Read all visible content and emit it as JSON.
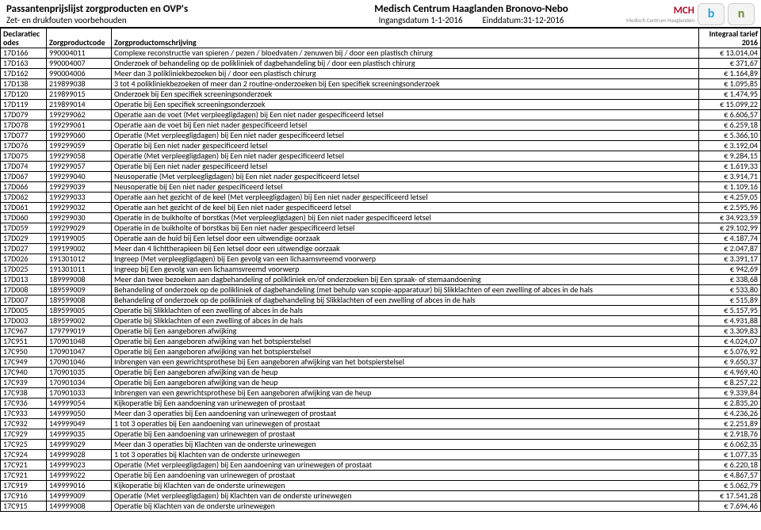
{
  "header": {
    "title_left_1": "Passantenprijslijst zorgproducten en OVP's",
    "title_left_2": "Zet- en drukfouten voorbehouden",
    "title_center_1": "Medisch Centrum Haaglanden Bronovo-Nebo",
    "title_center_2a": "Ingangsdatum 1-1-2016",
    "title_center_2b": "Einddatum:31-12-2016",
    "logo_mch": "MCH",
    "logo_mch_sub": "Medisch Centrum Haaglanden",
    "logo_b": "b",
    "logo_n": "n"
  },
  "columns": {
    "odes": "Declaratiec odes",
    "code": "Zorgproductcode",
    "desc": "Zorgproductomschrijving",
    "tarief": "Integraal tarief 2016"
  },
  "rows": [
    {
      "o": "17D166",
      "c": "990004011",
      "d": "Complexe reconstructie van spieren / pezen / bloedvaten / zenuwen bij / door een plastisch chirurg",
      "t": "€ 13.014,04"
    },
    {
      "o": "17D163",
      "c": "990004007",
      "d": "Onderzoek of behandeling op de polikliniek of dagbehandeling bij / door een plastisch chirurg",
      "t": "€ 371,67"
    },
    {
      "o": "17D162",
      "c": "990004006",
      "d": "Meer dan 3 polikliniekbezoeken bij / door een plastisch chirurg",
      "t": "€ 1.164,89"
    },
    {
      "o": "17D138",
      "c": "219899038",
      "d": "3 tot 4 polikliniekbezoeken of meer dan 2 routine-onderzoeken bij Een specifiek screeningsonderzoek",
      "t": "€ 1.095,85"
    },
    {
      "o": "17D120",
      "c": "219899015",
      "d": "Onderzoek bij Een specifiek screeningsonderzoek",
      "t": "€ 1.474,95"
    },
    {
      "o": "17D119",
      "c": "219899014",
      "d": "Operatie bij Een specifiek screeningsonderzoek",
      "t": "€ 15.099,22"
    },
    {
      "o": "17D079",
      "c": "199299062",
      "d": "Operatie aan de voet (Met verpleegligdagen) bij Een niet nader gespecificeerd letsel",
      "t": "€ 6.606,57"
    },
    {
      "o": "17D078",
      "c": "199299061",
      "d": "Operatie aan de voet bij Een niet nader gespecificeerd letsel",
      "t": "€ 6.259,18"
    },
    {
      "o": "17D077",
      "c": "199299060",
      "d": "Operatie (Met verpleegligdagen) bij Een niet nader gespecificeerd letsel",
      "t": "€ 5.366,10"
    },
    {
      "o": "17D076",
      "c": "199299059",
      "d": "Operatie bij Een niet nader gespecificeerd letsel",
      "t": "€ 3.192,04"
    },
    {
      "o": "17D075",
      "c": "199299058",
      "d": "Operatie (Met verpleegligdagen) bij Een niet nader gespecificeerd letsel",
      "t": "€ 9.284,15"
    },
    {
      "o": "17D074",
      "c": "199299057",
      "d": "Operatie bij Een niet nader gespecificeerd letsel",
      "t": "€ 1.619,33"
    },
    {
      "o": "17D067",
      "c": "199299040",
      "d": "Neusoperatie (Met verpleegligdagen) bij Een niet nader gespecificeerd letsel",
      "t": "€ 3.914,71"
    },
    {
      "o": "17D066",
      "c": "199299039",
      "d": "Neusoperatie bij Een niet nader gespecificeerd letsel",
      "t": "€ 1.109,16"
    },
    {
      "o": "17D062",
      "c": "199299033",
      "d": "Operatie aan het gezicht of de keel (Met verpleegligdagen) bij Een niet nader gespecificeerd letsel",
      "t": "€ 4.259,05"
    },
    {
      "o": "17D061",
      "c": "199299032",
      "d": "Operatie aan het gezicht of de keel bij Een niet nader gespecificeerd letsel",
      "t": "€ 2.595,96"
    },
    {
      "o": "17D060",
      "c": "199299030",
      "d": "Operatie in de buikholte of borstkas (Met verpleegligdagen) bij Een niet nader gespecificeerd letsel",
      "t": "€ 34.923,59"
    },
    {
      "o": "17D059",
      "c": "199299029",
      "d": "Operatie in de buikholte of borstkas bij Een niet nader gespecificeerd letsel",
      "t": "€ 29.102,99"
    },
    {
      "o": "17D029",
      "c": "199199005",
      "d": "Operatie aan de huid bij Een letsel door een uitwendige oorzaak",
      "t": "€ 4.187,74"
    },
    {
      "o": "17D027",
      "c": "199199002",
      "d": "Meer dan 4 lichttherapieen bij Een letsel door een uitwendige oorzaak",
      "t": "€ 2.047,87"
    },
    {
      "o": "17D026",
      "c": "191301012",
      "d": "Ingreep (Met verpleegligdagen) bij Een gevolg van een lichaamsvreemd voorwerp",
      "t": "€ 3.391,17"
    },
    {
      "o": "17D025",
      "c": "191301011",
      "d": "Ingreep bij Een gevolg van een lichaamsvreemd voorwerp",
      "t": "€ 942,69"
    },
    {
      "o": "17D013",
      "c": "189999008",
      "d": "Meer dan twee bezoeken aan dagbehandeling of polikliniek en/of onderzoeken bij Een spraak- of stemaandoening",
      "t": "€ 338,68"
    },
    {
      "o": "17D008",
      "c": "189599009",
      "d": "Behandeling of onderzoek op de polikliniek of dagbehandeling (met behulp van scopie-apparatuur) bij Slikklachten of een zwelling of abces in de hals",
      "t": "€ 533,80"
    },
    {
      "o": "17D007",
      "c": "189599008",
      "d": "Behandeling of onderzoek op de polikliniek of dagbehandeling bij Slikklachten of een zwelling of abces in de hals",
      "t": "€ 515,89"
    },
    {
      "o": "17D005",
      "c": "189599005",
      "d": "Operatie bij Slikklachten of een zwelling of abces in de hals",
      "t": "€ 5.157,95"
    },
    {
      "o": "17D003",
      "c": "189599002",
      "d": "Operatie bij Slikklachten of een zwelling of abces in de hals",
      "t": "€ 4.931,88"
    },
    {
      "o": "17C967",
      "c": "179799019",
      "d": "Operatie bij Een aangeboren afwijking",
      "t": "€ 3.309,83"
    },
    {
      "o": "17C951",
      "c": "170901048",
      "d": "Operatie bij Een aangeboren afwijking van het botspierstelsel",
      "t": "€ 4.024,07"
    },
    {
      "o": "17C950",
      "c": "170901047",
      "d": "Operatie bij Een aangeboren afwijking van het botspierstelsel",
      "t": "€ 5.076,92"
    },
    {
      "o": "17C949",
      "c": "170901046",
      "d": "Inbrengen van een gewrichtsprothese bij Een aangeboren afwijking van het botspierstelsel",
      "t": "€ 9.650,37"
    },
    {
      "o": "17C940",
      "c": "170901035",
      "d": "Operatie bij Een aangeboren afwijking van de heup",
      "t": "€ 4.969,40"
    },
    {
      "o": "17C939",
      "c": "170901034",
      "d": "Operatie bij Een aangeboren afwijking van de heup",
      "t": "€ 8.257,22"
    },
    {
      "o": "17C938",
      "c": "170901033",
      "d": "Inbrengen van een gewrichtsprothese bij Een aangeboren afwijking van de heup",
      "t": "€ 9.339,84"
    },
    {
      "o": "17C936",
      "c": "149999054",
      "d": "Kijkoperatie bij Een aandoening van urinewegen of prostaat",
      "t": "€ 2.835,20"
    },
    {
      "o": "17C933",
      "c": "149999050",
      "d": "Meer dan 3 operaties bij Een aandoening van urinewegen of prostaat",
      "t": "€ 4.236,26"
    },
    {
      "o": "17C932",
      "c": "149999049",
      "d": "1 tot 3 operaties bij Een aandoening van urinewegen of prostaat",
      "t": "€ 2.251,89"
    },
    {
      "o": "17C929",
      "c": "149999035",
      "d": "Operatie bij Een aandoening van urinewegen of prostaat",
      "t": "€ 2.918,76"
    },
    {
      "o": "17C925",
      "c": "149999029",
      "d": "Meer dan 3 operaties bij Klachten van de onderste urinewegen",
      "t": "€ 6.062,35"
    },
    {
      "o": "17C924",
      "c": "149999028",
      "d": "1 tot 3 operaties bij Klachten van de onderste urinewegen",
      "t": "€ 1.077,35"
    },
    {
      "o": "17C921",
      "c": "149999023",
      "d": "Operatie (Met verpleegligdagen) bij Een aandoening van urinewegen of prostaat",
      "t": "€ 6.220,18"
    },
    {
      "o": "17C921",
      "c": "149999022",
      "d": "Operatie bij Een aandoening van urinewegen of prostaat",
      "t": "€ 4.867,57"
    },
    {
      "o": "17C919",
      "c": "149999016",
      "d": "Kijkoperatie bij Klachten van de onderste urinewegen",
      "t": "€ 5.062,79"
    },
    {
      "o": "17C916",
      "c": "149999009",
      "d": "Operatie (Met verpleegligdagen) bij Klachten van de onderste urinewegen",
      "t": "€ 17.541,28"
    },
    {
      "o": "17C915",
      "c": "149999008",
      "d": "Operatie bij Klachten van de onderste urinewegen",
      "t": "€ 7.694,46"
    }
  ],
  "style": {
    "background": "#ffffff",
    "text_color": "#000000",
    "border_color": "#000000",
    "font_family": "Calibri, Arial, sans-serif",
    "font_size_header": 13,
    "font_size_body": 10,
    "logo_mch_color": "#b01030",
    "logo_b_color": "#3aa0d0",
    "logo_n_color": "#6a8f2f"
  }
}
